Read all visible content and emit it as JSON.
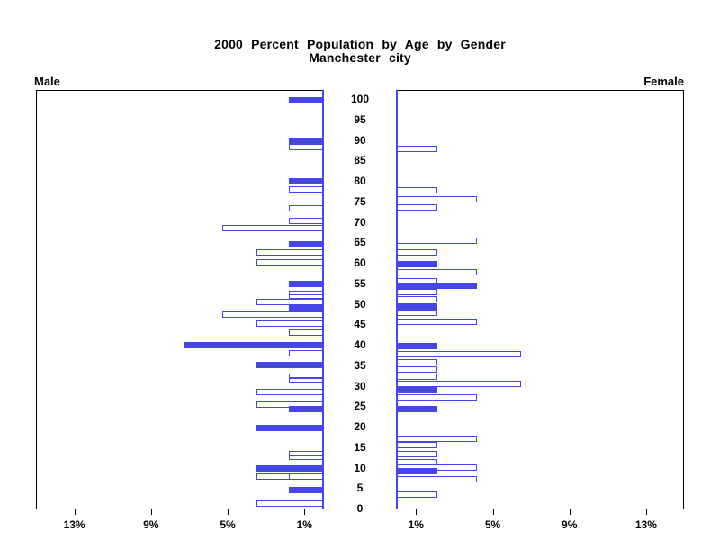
{
  "title": {
    "line1": "2000 Percent Population by Age by Gender",
    "line2": "Manchester city"
  },
  "panels": {
    "male_label": "Male",
    "female_label": "Female"
  },
  "colors": {
    "bar_blue": "#4646e8",
    "axis_black": "#000000"
  },
  "age_axis": {
    "labels": [
      "100",
      "95",
      "90",
      "85",
      "80",
      "75",
      "70",
      "65",
      "60",
      "55",
      "50",
      "45",
      "40",
      "35",
      "30",
      "25",
      "20",
      "15",
      "10",
      "5",
      "0"
    ]
  },
  "pct_axis": {
    "male_ticks": [
      {
        "value": 13,
        "label": "13%"
      },
      {
        "value": 9,
        "label": "9%"
      },
      {
        "value": 5,
        "label": "5%"
      },
      {
        "value": 1,
        "label": "1%"
      }
    ],
    "female_ticks": [
      {
        "value": 1,
        "label": "1%"
      },
      {
        "value": 5,
        "label": "5%"
      },
      {
        "value": 9,
        "label": "9%"
      },
      {
        "value": 13,
        "label": "13%"
      }
    ]
  },
  "chart_data": {
    "type": "bar",
    "subtype": "population-pyramid",
    "title": "2000 Percent Population by Age by Gender",
    "subtitle": "Manchester city",
    "x_units": "percent of population",
    "y_units": "age in years",
    "x_range_each_side": [
      0,
      15
    ],
    "age_range": [
      0,
      100
    ],
    "legend": "none",
    "series_styles": {
      "solid": "filled blue bar",
      "hollow": "white bar with blue outline"
    },
    "male_bars": [
      {
        "age": 99.7,
        "style": "solid",
        "pct": 1.8
      },
      {
        "age": 89.8,
        "style": "solid",
        "pct": 1.8
      },
      {
        "age": 88.2,
        "style": "hollow",
        "pct": 1.8
      },
      {
        "age": 79.9,
        "style": "solid",
        "pct": 1.8
      },
      {
        "age": 78.0,
        "style": "hollow",
        "pct": 1.8
      },
      {
        "age": 73.4,
        "style": "hollow",
        "pct": 1.8
      },
      {
        "age": 70.3,
        "style": "hollow",
        "pct": 1.8
      },
      {
        "age": 68.4,
        "style": "hollow",
        "pct": 5.3
      },
      {
        "age": 64.6,
        "style": "solid",
        "pct": 1.8
      },
      {
        "age": 62.6,
        "style": "hollow",
        "pct": 3.5
      },
      {
        "age": 60.1,
        "style": "hollow",
        "pct": 3.5
      },
      {
        "age": 54.9,
        "style": "solid",
        "pct": 1.8
      },
      {
        "age": 52.6,
        "style": "hollow",
        "pct": 1.8,
        "thin": true
      },
      {
        "age": 51.7,
        "style": "hollow",
        "pct": 1.8,
        "thin": true
      },
      {
        "age": 50.5,
        "style": "hollow",
        "pct": 3.5
      },
      {
        "age": 49.2,
        "style": "solid",
        "pct": 1.8
      },
      {
        "age": 47.3,
        "style": "hollow",
        "pct": 5.3
      },
      {
        "age": 45.1,
        "style": "hollow",
        "pct": 3.5
      },
      {
        "age": 42.9,
        "style": "hollow",
        "pct": 1.8
      },
      {
        "age": 39.8,
        "style": "solid",
        "pct": 7.3
      },
      {
        "age": 38.0,
        "style": "hollow",
        "pct": 1.8
      },
      {
        "age": 35.1,
        "style": "solid",
        "pct": 3.5
      },
      {
        "age": 32.5,
        "style": "hollow",
        "pct": 1.8,
        "thin": true
      },
      {
        "age": 31.3,
        "style": "hollow",
        "pct": 1.8,
        "thin": true
      },
      {
        "age": 28.5,
        "style": "hollow",
        "pct": 3.5
      },
      {
        "age": 25.3,
        "style": "hollow",
        "pct": 3.5
      },
      {
        "age": 24.2,
        "style": "solid",
        "pct": 1.8
      },
      {
        "age": 19.6,
        "style": "solid",
        "pct": 3.5
      },
      {
        "age": 13.6,
        "style": "hollow",
        "pct": 1.8,
        "thin": true
      },
      {
        "age": 12.4,
        "style": "hollow",
        "pct": 1.8,
        "thin": true
      },
      {
        "age": 9.7,
        "style": "solid",
        "pct": 3.5
      },
      {
        "age": 7.7,
        "style": "hollow",
        "pct": 3.5
      },
      {
        "age": 7.7,
        "style": "hollow",
        "pct": 1.8
      },
      {
        "age": 4.5,
        "style": "solid",
        "pct": 1.8
      },
      {
        "age": 1.3,
        "style": "hollow",
        "pct": 3.5
      }
    ],
    "female_bars": [
      {
        "age": 87.8,
        "style": "hollow",
        "pct": 2.1
      },
      {
        "age": 77.7,
        "style": "hollow",
        "pct": 2.1
      },
      {
        "age": 75.5,
        "style": "hollow",
        "pct": 4.2
      },
      {
        "age": 73.5,
        "style": "hollow",
        "pct": 2.1
      },
      {
        "age": 65.4,
        "style": "hollow",
        "pct": 4.2
      },
      {
        "age": 62.5,
        "style": "hollow",
        "pct": 2.1
      },
      {
        "age": 59.6,
        "style": "solid",
        "pct": 2.1
      },
      {
        "age": 57.6,
        "style": "hollow",
        "pct": 4.2
      },
      {
        "age": 55.6,
        "style": "hollow",
        "pct": 2.1
      },
      {
        "age": 54.4,
        "style": "solid",
        "pct": 4.2
      },
      {
        "age": 52.8,
        "style": "hollow",
        "pct": 2.1
      },
      {
        "age": 51.0,
        "style": "hollow",
        "pct": 2.1
      },
      {
        "age": 49.4,
        "style": "solid",
        "pct": 2.1
      },
      {
        "age": 47.7,
        "style": "hollow",
        "pct": 2.1
      },
      {
        "age": 45.6,
        "style": "hollow",
        "pct": 4.2
      },
      {
        "age": 39.6,
        "style": "solid",
        "pct": 2.1
      },
      {
        "age": 37.6,
        "style": "hollow",
        "pct": 6.5
      },
      {
        "age": 35.8,
        "style": "hollow",
        "pct": 2.1
      },
      {
        "age": 33.9,
        "style": "hollow",
        "pct": 2.1
      },
      {
        "age": 32.3,
        "style": "hollow",
        "pct": 2.1
      },
      {
        "age": 30.5,
        "style": "hollow",
        "pct": 6.5
      },
      {
        "age": 28.8,
        "style": "solid",
        "pct": 2.1
      },
      {
        "age": 27.2,
        "style": "hollow",
        "pct": 4.2
      },
      {
        "age": 24.2,
        "style": "solid",
        "pct": 2.1
      },
      {
        "age": 17.1,
        "style": "hollow",
        "pct": 4.2
      },
      {
        "age": 15.5,
        "style": "hollow",
        "pct": 2.1
      },
      {
        "age": 13.3,
        "style": "hollow",
        "pct": 2.1
      },
      {
        "age": 11.3,
        "style": "hollow",
        "pct": 2.1
      },
      {
        "age": 10.1,
        "style": "hollow",
        "pct": 4.2
      },
      {
        "age": 9.2,
        "style": "solid",
        "pct": 2.1
      },
      {
        "age": 7.1,
        "style": "hollow",
        "pct": 4.2
      },
      {
        "age": 3.4,
        "style": "hollow",
        "pct": 2.1
      }
    ]
  }
}
